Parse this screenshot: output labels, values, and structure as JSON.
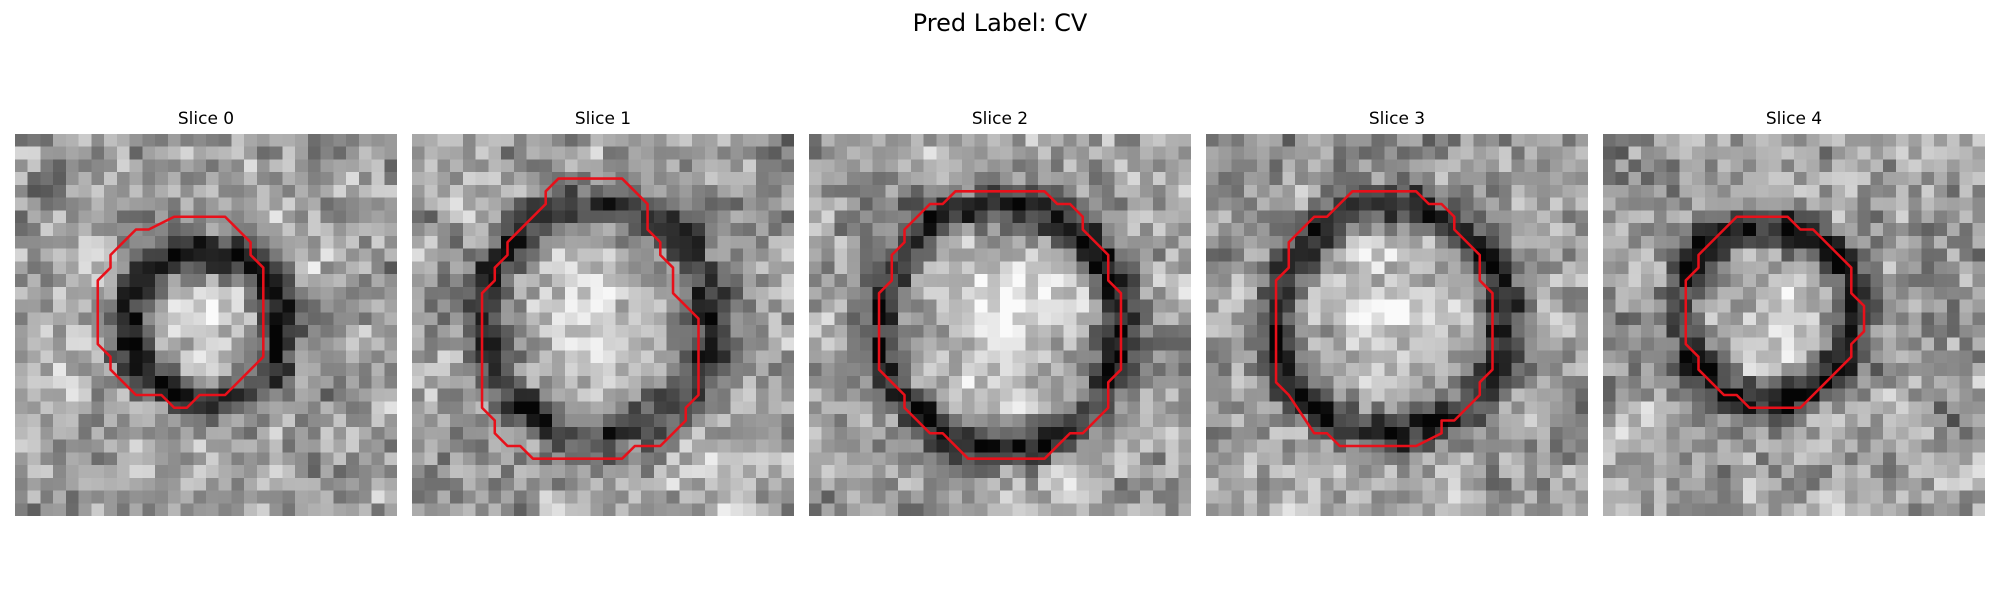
{
  "figure": {
    "title": "Pred Label: CV",
    "contour_color": "#e8101a",
    "colormap": "gray"
  },
  "panels": [
    {
      "label": "Slice 0",
      "image_alt": "grayscale microscopy slice with red segmentation contour",
      "seed": 11,
      "blob": {
        "cx": 15,
        "cy": 15,
        "r": 6,
        "ring_dark": 0.55,
        "inner_bright": 0.25
      },
      "contour": [
        [
          12.5,
          6.5
        ],
        [
          16.5,
          6.5
        ],
        [
          18.5,
          8.5
        ],
        [
          18.5,
          9.5
        ],
        [
          19.5,
          10.5
        ],
        [
          19.5,
          17.5
        ],
        [
          18.5,
          18.5
        ],
        [
          16.5,
          20.5
        ],
        [
          14.5,
          20.5
        ],
        [
          13.5,
          21.5
        ],
        [
          12.5,
          21.5
        ],
        [
          11.5,
          20.5
        ],
        [
          9.5,
          20.5
        ],
        [
          7.5,
          18.5
        ],
        [
          7.5,
          17.5
        ],
        [
          6.5,
          16.5
        ],
        [
          6.5,
          11.5
        ],
        [
          7.5,
          10.5
        ],
        [
          7.5,
          9.5
        ],
        [
          9.5,
          7.5
        ],
        [
          10.5,
          7.5
        ]
      ]
    },
    {
      "label": "Slice 1",
      "image_alt": "grayscale microscopy slice with red segmentation contour",
      "seed": 23,
      "blob": {
        "cx": 14.5,
        "cy": 14.5,
        "r": 9,
        "ring_dark": 0.45,
        "inner_bright": 0.2
      },
      "contour": [
        [
          11.5,
          3.5
        ],
        [
          16.5,
          3.5
        ],
        [
          18.5,
          5.5
        ],
        [
          18.5,
          7.5
        ],
        [
          19.5,
          8.5
        ],
        [
          19.5,
          9.5
        ],
        [
          20.5,
          10.5
        ],
        [
          20.5,
          12.5
        ],
        [
          22.5,
          14.5
        ],
        [
          22.5,
          20.5
        ],
        [
          21.5,
          21.5
        ],
        [
          21.5,
          22.5
        ],
        [
          19.5,
          24.5
        ],
        [
          17.5,
          24.5
        ],
        [
          16.5,
          25.5
        ],
        [
          9.5,
          25.5
        ],
        [
          8.5,
          24.5
        ],
        [
          7.5,
          24.5
        ],
        [
          6.5,
          23.5
        ],
        [
          6.5,
          22.5
        ],
        [
          5.5,
          21.5
        ],
        [
          5.5,
          12.5
        ],
        [
          6.5,
          11.5
        ],
        [
          6.5,
          10.5
        ],
        [
          7.5,
          9.5
        ],
        [
          7.5,
          8.5
        ],
        [
          10.5,
          5.5
        ],
        [
          10.5,
          4.5
        ]
      ]
    },
    {
      "label": "Slice 2",
      "image_alt": "grayscale microscopy slice with red segmentation contour",
      "seed": 37,
      "blob": {
        "cx": 15,
        "cy": 15,
        "r": 9.5,
        "ring_dark": 0.5,
        "inner_bright": 0.3
      },
      "contour": [
        [
          11.5,
          4.5
        ],
        [
          18.5,
          4.5
        ],
        [
          19.5,
          5.5
        ],
        [
          20.5,
          5.5
        ],
        [
          21.5,
          6.5
        ],
        [
          21.5,
          7.5
        ],
        [
          22.5,
          8.5
        ],
        [
          23.5,
          9.5
        ],
        [
          23.5,
          11.5
        ],
        [
          24.5,
          12.5
        ],
        [
          24.5,
          18.5
        ],
        [
          23.5,
          19.5
        ],
        [
          23.5,
          21.5
        ],
        [
          21.5,
          23.5
        ],
        [
          20.5,
          23.5
        ],
        [
          18.5,
          25.5
        ],
        [
          12.5,
          25.5
        ],
        [
          10.5,
          23.5
        ],
        [
          9.5,
          23.5
        ],
        [
          7.5,
          21.5
        ],
        [
          7.5,
          20.5
        ],
        [
          5.5,
          18.5
        ],
        [
          5.5,
          12.5
        ],
        [
          6.5,
          11.5
        ],
        [
          6.5,
          9.5
        ],
        [
          7.5,
          8.5
        ],
        [
          7.5,
          7.5
        ],
        [
          9.5,
          5.5
        ],
        [
          10.5,
          5.5
        ]
      ]
    },
    {
      "label": "Slice 3",
      "image_alt": "grayscale microscopy slice with red segmentation contour",
      "seed": 53,
      "blob": {
        "cx": 14.5,
        "cy": 14.5,
        "r": 9,
        "ring_dark": 0.5,
        "inner_bright": 0.25
      },
      "contour": [
        [
          11.5,
          4.5
        ],
        [
          16.5,
          4.5
        ],
        [
          17.5,
          5.5
        ],
        [
          18.5,
          5.5
        ],
        [
          19.5,
          6.5
        ],
        [
          19.5,
          7.5
        ],
        [
          21.5,
          9.5
        ],
        [
          21.5,
          11.5
        ],
        [
          22.5,
          12.5
        ],
        [
          22.5,
          18.5
        ],
        [
          21.5,
          19.5
        ],
        [
          21.5,
          20.5
        ],
        [
          19.5,
          22.5
        ],
        [
          18.5,
          22.5
        ],
        [
          18.5,
          23.5
        ],
        [
          16.5,
          24.5
        ],
        [
          10.5,
          24.5
        ],
        [
          9.5,
          23.5
        ],
        [
          8.5,
          23.5
        ],
        [
          6.5,
          20.5
        ],
        [
          5.5,
          19.5
        ],
        [
          5.5,
          11.5
        ],
        [
          6.5,
          10.5
        ],
        [
          6.5,
          8.5
        ],
        [
          8.5,
          6.5
        ],
        [
          9.5,
          6.5
        ],
        [
          10.5,
          5.5
        ]
      ]
    },
    {
      "label": "Slice 4",
      "image_alt": "grayscale microscopy slice with red segmentation contour",
      "seed": 71,
      "blob": {
        "cx": 13,
        "cy": 14,
        "r": 7,
        "ring_dark": 0.55,
        "inner_bright": 0.22
      },
      "contour": [
        [
          10.5,
          6.5
        ],
        [
          14.5,
          6.5
        ],
        [
          15.5,
          7.5
        ],
        [
          16.5,
          7.5
        ],
        [
          18.5,
          9.5
        ],
        [
          19.5,
          10.5
        ],
        [
          19.5,
          12.5
        ],
        [
          20.5,
          13.5
        ],
        [
          20.5,
          15.5
        ],
        [
          19.5,
          16.5
        ],
        [
          19.5,
          17.5
        ],
        [
          17.5,
          19.5
        ],
        [
          16.5,
          20.5
        ],
        [
          15.5,
          21.5
        ],
        [
          11.5,
          21.5
        ],
        [
          10.5,
          20.5
        ],
        [
          9.5,
          20.5
        ],
        [
          8.5,
          19.5
        ],
        [
          7.5,
          18.5
        ],
        [
          7.5,
          17.5
        ],
        [
          6.5,
          16.5
        ],
        [
          6.5,
          11.5
        ],
        [
          7.5,
          10.5
        ],
        [
          7.5,
          9.5
        ],
        [
          9.5,
          7.5
        ]
      ]
    }
  ]
}
